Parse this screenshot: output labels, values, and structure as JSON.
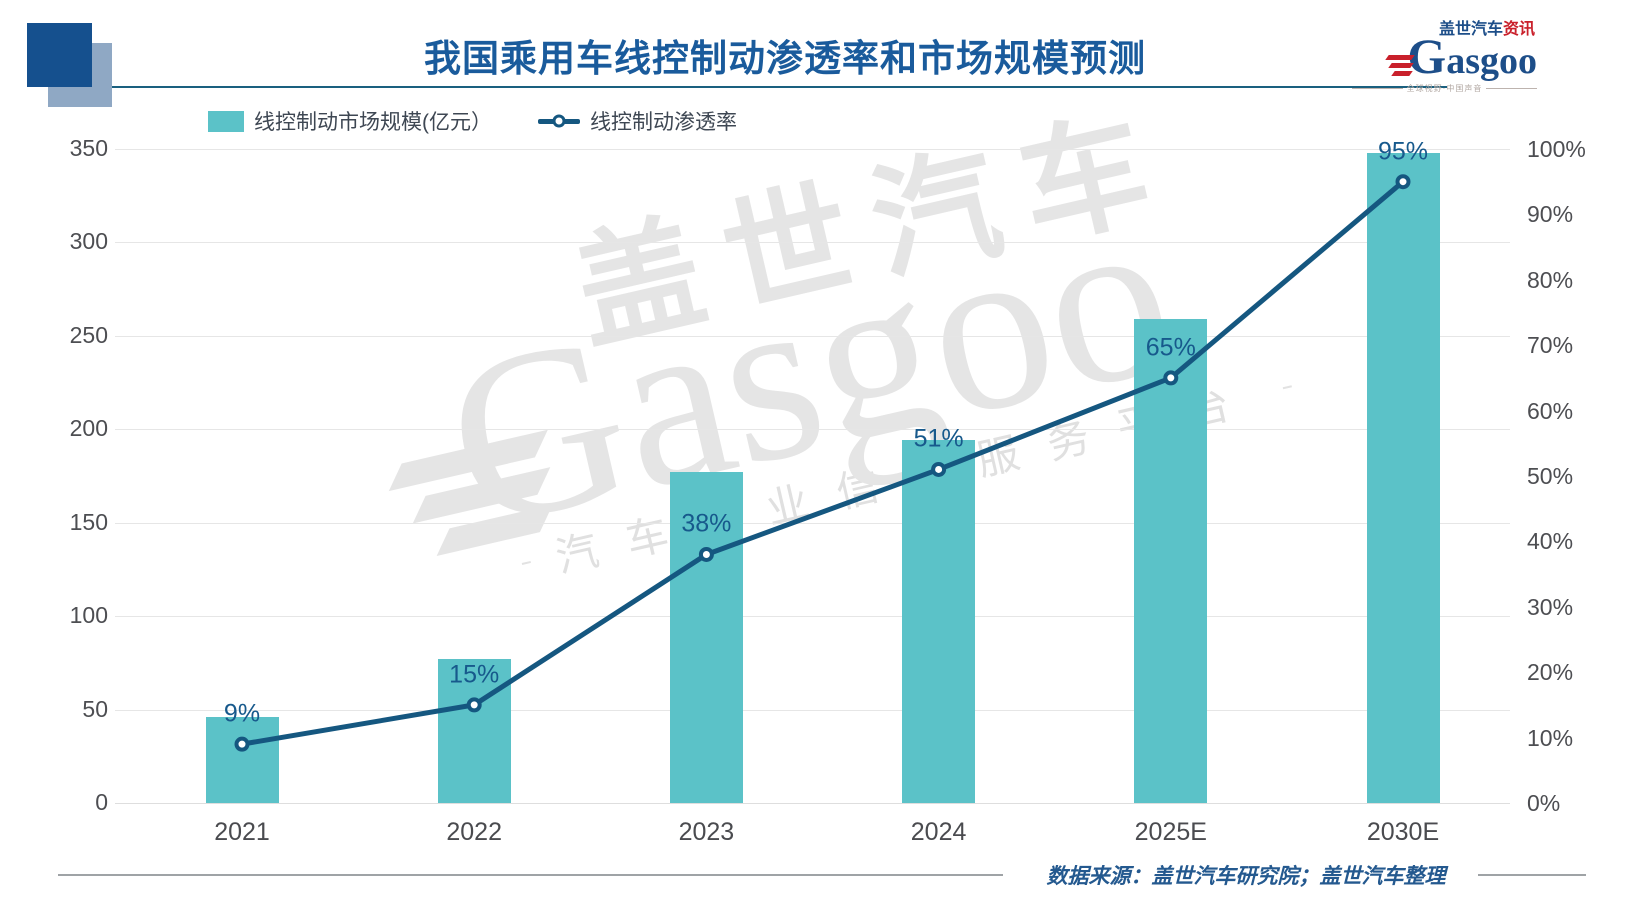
{
  "title": "我国乘用车线控制动渗透率和市场规模预测",
  "logo": {
    "cn": "盖世汽车",
    "cn_suffix": "资讯",
    "en": "Gasgoo",
    "tagline": "全球视野·中国声音"
  },
  "legend": {
    "items": [
      {
        "label": "线控制动市场规模(亿元）",
        "marker": "bar-swatch"
      },
      {
        "label": "线控制动渗透率",
        "marker": "line-marker"
      }
    ]
  },
  "watermark": {
    "cn": "盖世汽车",
    "en": "Gasgoo",
    "tagline": "汽车产业信息服务平台"
  },
  "source": "数据来源：盖世汽车研究院；盖世汽车整理",
  "colors": {
    "bar": "#5BC2C8",
    "line": "#155780",
    "title_blue": "#1A5B9C",
    "point_label_blue": "#17598C",
    "axis_text": "#4D4E52",
    "gridline": "#E6E6E6",
    "accent_red": "#C9202B",
    "square_dark": "#15508E",
    "square_light": "#8FA8C4",
    "watermark_gray": "#E5E5E5"
  },
  "chart_data": {
    "type": "bar",
    "subtype": "combo-bar-line-dual-axis",
    "title": "我国乘用车线控制动渗透率和市场规模预测",
    "categories": [
      "2021",
      "2022",
      "2023",
      "2024",
      "2025E",
      "2030E"
    ],
    "series": [
      {
        "name": "线控制动市场规模(亿元）",
        "type": "bar",
        "axis": "left",
        "values": [
          46,
          77,
          177,
          194,
          259,
          348
        ]
      },
      {
        "name": "线控制动渗透率",
        "type": "line",
        "axis": "right",
        "values": [
          9,
          15,
          38,
          51,
          65,
          95
        ],
        "unit": "%"
      }
    ],
    "point_labels": [
      "9%",
      "15%",
      "38%",
      "51%",
      "65%",
      "95%"
    ],
    "left_axis": {
      "min": 0,
      "max": 350,
      "step": 50,
      "ticks": [
        0,
        50,
        100,
        150,
        200,
        250,
        300,
        350
      ]
    },
    "right_axis": {
      "min": 0,
      "max": 100,
      "step": 10,
      "unit": "%",
      "ticks": [
        0,
        10,
        20,
        30,
        40,
        50,
        60,
        70,
        80,
        90,
        100
      ]
    },
    "grid": "horizontal",
    "legend_position": "top-left",
    "source_note": "数据来源：盖世汽车研究院；盖世汽车整理"
  }
}
